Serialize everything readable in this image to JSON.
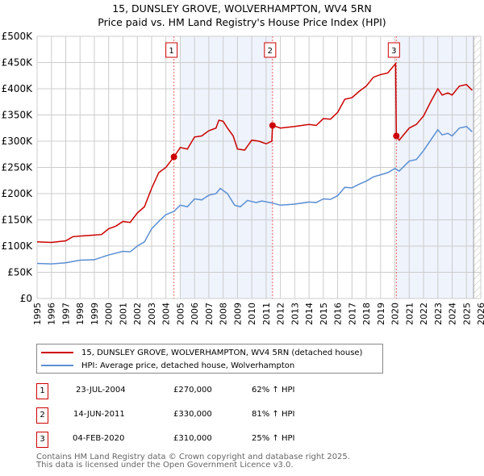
{
  "title": "15, DUNSLEY GROVE, WOLVERHAMPTON, WV4 5RN",
  "subtitle": "Price paid vs. HM Land Registry's House Price Index (HPI)",
  "chart_data": {
    "type": "line",
    "xlim": [
      1995,
      2026
    ],
    "ylim": [
      0,
      500000
    ],
    "x_ticks": [
      "1995",
      "1996",
      "1997",
      "1998",
      "1999",
      "2000",
      "2001",
      "2002",
      "2003",
      "2004",
      "2005",
      "2006",
      "2007",
      "2008",
      "2009",
      "2010",
      "2011",
      "2012",
      "2013",
      "2014",
      "2015",
      "2016",
      "2017",
      "2018",
      "2019",
      "2020",
      "2021",
      "2022",
      "2023",
      "2024",
      "2025",
      "2026"
    ],
    "y_ticks": [
      {
        "v": 0,
        "label": "£0"
      },
      {
        "v": 50000,
        "label": "£50K"
      },
      {
        "v": 100000,
        "label": "£100K"
      },
      {
        "v": 150000,
        "label": "£150K"
      },
      {
        "v": 200000,
        "label": "£200K"
      },
      {
        "v": 250000,
        "label": "£250K"
      },
      {
        "v": 300000,
        "label": "£300K"
      },
      {
        "v": 350000,
        "label": "£350K"
      },
      {
        "v": 400000,
        "label": "£400K"
      },
      {
        "v": 450000,
        "label": "£450K"
      },
      {
        "v": 500000,
        "label": "£500K"
      }
    ],
    "grid": true,
    "series": [
      {
        "name": "15, DUNSLEY GROVE, WOLVERHAMPTON, WV4 5RN (detached house)",
        "color": "#cc0000",
        "x": [
          1995,
          1996,
          1997,
          1997.5,
          1998,
          1999,
          1999.5,
          2000,
          2000.5,
          2001,
          2001.5,
          2002,
          2002.5,
          2003,
          2003.5,
          2004,
          2004.56,
          2005,
          2005.5,
          2006,
          2006.5,
          2007,
          2007.5,
          2007.7,
          2008,
          2008.3,
          2008.7,
          2009,
          2009.5,
          2010,
          2010.5,
          2011,
          2011.4,
          2011.45,
          2012,
          2013,
          2014,
          2014.5,
          2015,
          2015.5,
          2016,
          2016.5,
          2017,
          2017.5,
          2018,
          2018.5,
          2019,
          2019.5,
          2020.05,
          2020.1,
          2020.3,
          2021,
          2021.5,
          2022,
          2022.5,
          2023,
          2023.3,
          2023.7,
          2024,
          2024.5,
          2025,
          2025.4
        ],
        "y": [
          108000,
          107000,
          110000,
          118000,
          119000,
          121000,
          122000,
          133000,
          138000,
          147000,
          145000,
          163000,
          175000,
          210000,
          240000,
          250000,
          270000,
          288000,
          285000,
          308000,
          310000,
          320000,
          325000,
          340000,
          338000,
          325000,
          310000,
          285000,
          283000,
          302000,
          300000,
          295000,
          300000,
          330000,
          325000,
          328000,
          332000,
          330000,
          343000,
          342000,
          355000,
          380000,
          383000,
          395000,
          405000,
          422000,
          427000,
          430000,
          448000,
          310000,
          302000,
          325000,
          332000,
          348000,
          375000,
          400000,
          388000,
          392000,
          388000,
          405000,
          408000,
          397000
        ]
      },
      {
        "name": "HPI: Average price, detached house, Wolverhampton",
        "color": "#5b8fd4",
        "x": [
          1995,
          1996,
          1997,
          1998,
          1999,
          2000,
          2001,
          2001.5,
          2002,
          2002.5,
          2003,
          2003.5,
          2004,
          2004.56,
          2005,
          2005.5,
          2006,
          2006.5,
          2007,
          2007.5,
          2007.8,
          2008.3,
          2008.8,
          2009.2,
          2009.7,
          2010.3,
          2010.7,
          2011.45,
          2012,
          2013,
          2014,
          2014.5,
          2015,
          2015.5,
          2016,
          2016.5,
          2017,
          2017.5,
          2018,
          2018.5,
          2019,
          2019.5,
          2020,
          2020.3,
          2021,
          2021.5,
          2022,
          2022.5,
          2023,
          2023.3,
          2023.7,
          2024,
          2024.5,
          2025,
          2025.4
        ],
        "y": [
          67000,
          66000,
          68000,
          73000,
          74000,
          83000,
          90000,
          89000,
          100000,
          108000,
          133000,
          147000,
          160000,
          166000,
          178000,
          175000,
          190000,
          188000,
          197000,
          200000,
          210000,
          200000,
          178000,
          175000,
          187000,
          183000,
          186000,
          182000,
          178000,
          180000,
          184000,
          183000,
          190000,
          189000,
          196000,
          212000,
          211000,
          218000,
          224000,
          232000,
          236000,
          240000,
          248000,
          243000,
          262000,
          265000,
          282000,
          302000,
          322000,
          312000,
          315000,
          310000,
          325000,
          328000,
          318000
        ]
      }
    ],
    "sales": [
      {
        "n": "1",
        "x": 2004.56,
        "y": 270000,
        "date": "23-JUL-2004",
        "price": "£270,000",
        "hpi": "62% ↑ HPI"
      },
      {
        "n": "2",
        "x": 2011.45,
        "y": 330000,
        "date": "14-JUN-2011",
        "price": "£330,000",
        "hpi": "81% ↑ HPI"
      },
      {
        "n": "3",
        "x": 2020.1,
        "y": 310000,
        "date": "04-FEB-2020",
        "price": "£310,000",
        "hpi": "25% ↑ HPI"
      }
    ],
    "shaded": [
      [
        2005,
        2011.45
      ],
      [
        2020.1,
        2025.5
      ]
    ],
    "hatched_from": 2025.5
  },
  "footer": {
    "line1": "Contains HM Land Registry data © Crown copyright and database right 2025.",
    "line2": "This data is licensed under the Open Government Licence v3.0."
  }
}
